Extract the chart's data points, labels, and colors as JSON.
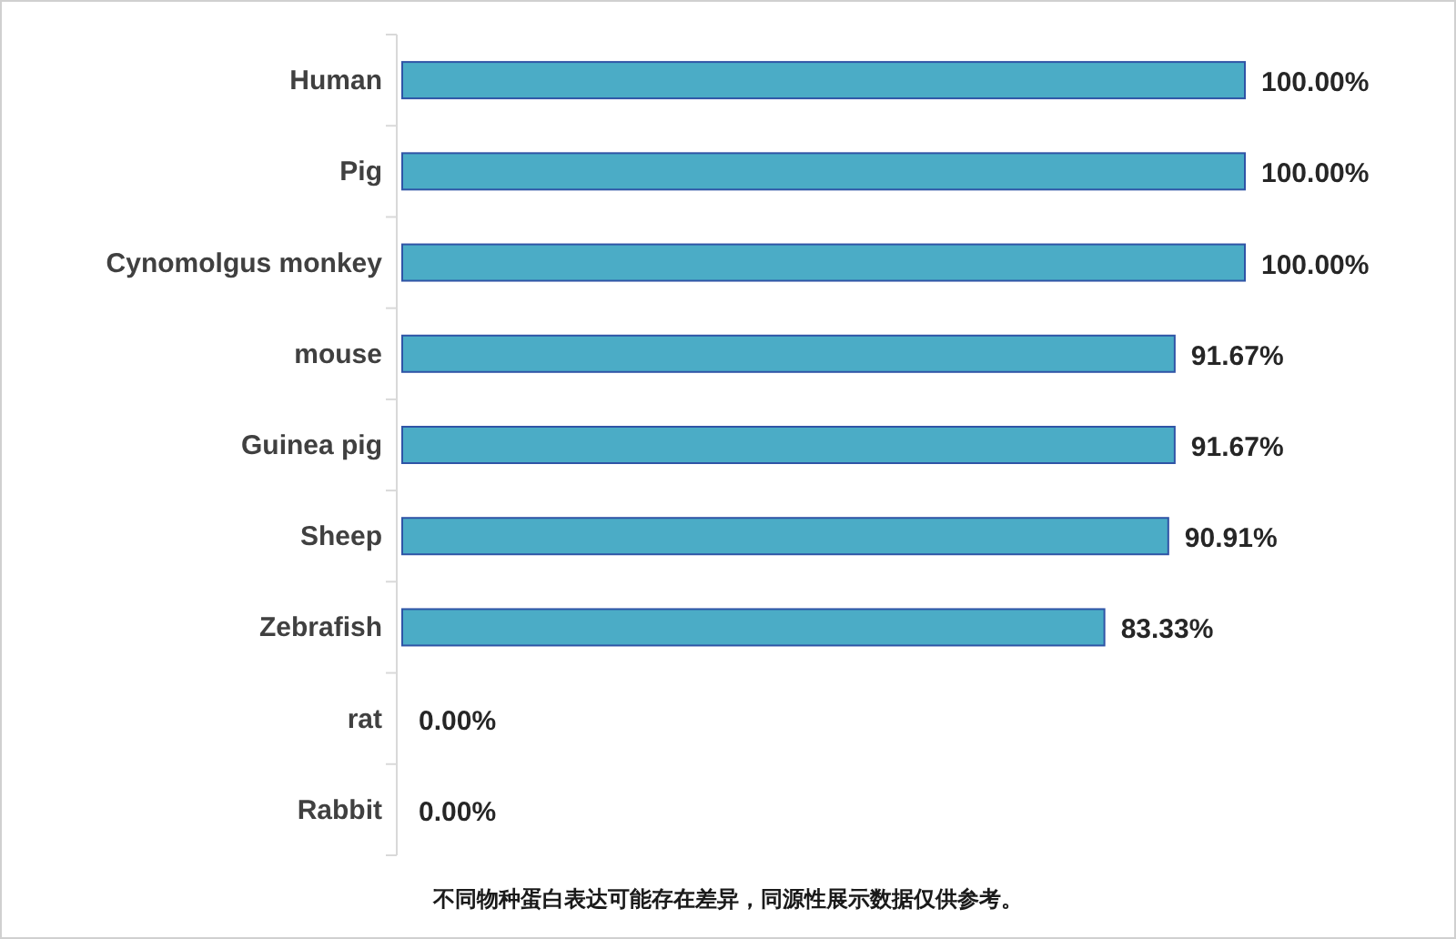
{
  "chart_data": {
    "type": "bar",
    "orientation": "horizontal",
    "categories": [
      "Human",
      "Pig",
      "Cynomolgus monkey",
      "mouse",
      "Guinea pig",
      "Sheep",
      "Zebrafish",
      "rat",
      "Rabbit"
    ],
    "values": [
      100,
      100,
      100,
      91.67,
      91.67,
      90.91,
      83.33,
      0,
      0
    ],
    "value_labels": [
      "100.00%",
      "100.00%",
      "100.00%",
      "91.67%",
      "91.67%",
      "90.91%",
      "83.33%",
      "0.00%",
      "0.00%"
    ],
    "color": "#4bacc6",
    "xlim": [
      0,
      100
    ],
    "tick_labels": "y",
    "annotations": [
      "不同物种蛋白表达可能存在差异，同源性展示数据仅供参考。"
    ]
  }
}
